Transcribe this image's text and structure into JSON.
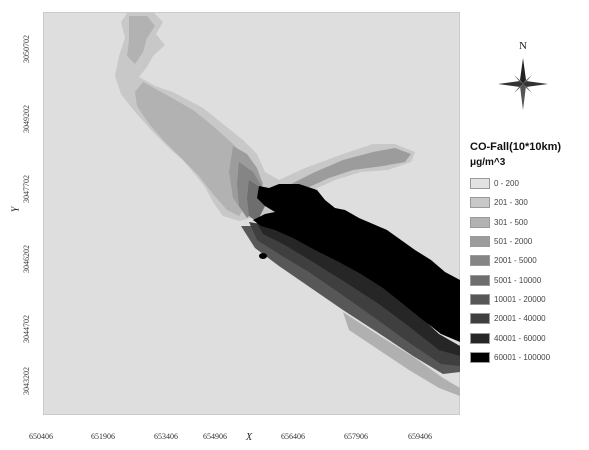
{
  "map": {
    "x_axis_label": "X",
    "y_axis_label": "Y",
    "x_ticks": [
      "650406",
      "651906",
      "653406",
      "654906",
      "656406",
      "657906",
      "659406"
    ],
    "y_ticks": [
      "3050702",
      "3049202",
      "3047702",
      "3046202",
      "3044702",
      "3043202"
    ],
    "background_color": "#dedede"
  },
  "north_arrow": {
    "letter": "N"
  },
  "legend": {
    "title": "CO-Fall(10*10km)",
    "unit": "μg/m^3",
    "classes": [
      {
        "label": "0 - 200",
        "color": "#e2e2e2"
      },
      {
        "label": "201 - 300",
        "color": "#c8c8c8"
      },
      {
        "label": "301 - 500",
        "color": "#b2b2b2"
      },
      {
        "label": "501 - 2000",
        "color": "#9c9c9c"
      },
      {
        "label": "2001 - 5000",
        "color": "#858585"
      },
      {
        "label": "5001 - 10000",
        "color": "#6e6e6e"
      },
      {
        "label": "10001 - 20000",
        "color": "#575757"
      },
      {
        "label": "20001 - 40000",
        "color": "#3f3f3f"
      },
      {
        "label": "40001 - 60000",
        "color": "#262626"
      },
      {
        "label": "60001 - 100000",
        "color": "#000000"
      }
    ]
  }
}
